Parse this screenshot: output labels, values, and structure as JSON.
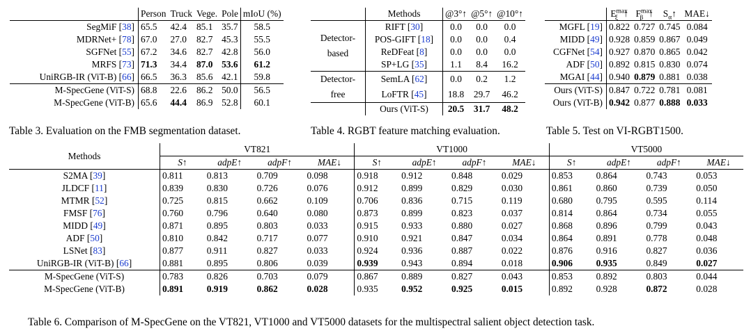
{
  "t3": {
    "cols": [
      "Person",
      "Truck",
      "Vege.",
      "Pole",
      "mIoU (%)"
    ],
    "rows": [
      {
        "m": "SegMiF",
        "r": "38",
        "v": [
          "65.5",
          "42.4",
          "85.1",
          "35.7",
          "58.5"
        ],
        "b": []
      },
      {
        "m": "MDRNet+",
        "r": "78",
        "v": [
          "67.0",
          "27.0",
          "82.7",
          "45.3",
          "55.5"
        ],
        "b": []
      },
      {
        "m": "SGFNet",
        "r": "55",
        "v": [
          "67.2",
          "34.6",
          "82.7",
          "42.8",
          "56.0"
        ],
        "b": []
      },
      {
        "m": "MRFS",
        "r": "73",
        "v": [
          "71.3",
          "34.4",
          "87.0",
          "53.6",
          "61.2"
        ],
        "b": [
          0,
          2,
          3,
          4
        ]
      },
      {
        "m": "UniRGB-IR (ViT-B)",
        "r": "66",
        "v": [
          "66.5",
          "36.3",
          "85.6",
          "42.1",
          "59.8"
        ],
        "b": []
      },
      {
        "m": "M-SpecGene (ViT-S)",
        "r": "",
        "v": [
          "68.8",
          "22.6",
          "86.2",
          "50.0",
          "56.5"
        ],
        "b": []
      },
      {
        "m": "M-SpecGene (ViT-B)",
        "r": "",
        "v": [
          "65.6",
          "44.4",
          "86.9",
          "52.8",
          "60.1"
        ],
        "b": [
          1
        ]
      }
    ],
    "caption": "Table 3. Evaluation on the FMB segmentation dataset."
  },
  "t4": {
    "cols": [
      "Methods",
      "@3°↑",
      "@5°↑",
      "@10°↑"
    ],
    "groups": [
      {
        "label1": "Detector-",
        "label2": "based",
        "rows": [
          {
            "m": "RIFT",
            "r": "30",
            "v": [
              "0.0",
              "0.0",
              "0.0"
            ],
            "b": []
          },
          {
            "m": "POS-GIFT",
            "r": "18",
            "v": [
              "0.0",
              "0.0",
              "0.4"
            ],
            "b": []
          },
          {
            "m": "ReDFeat",
            "r": "8",
            "v": [
              "0.0",
              "0.0",
              "0.0"
            ],
            "b": []
          },
          {
            "m": "SP+LG",
            "r": "35",
            "v": [
              "1.1",
              "8.4",
              "16.2"
            ],
            "b": []
          }
        ]
      },
      {
        "label1": "Detector-",
        "label2": "free",
        "rows": [
          {
            "m": "SemLA",
            "r": "62",
            "v": [
              "0.0",
              "0.2",
              "1.2"
            ],
            "b": []
          },
          {
            "m": "LoFTR",
            "r": "45",
            "v": [
              "18.8",
              "29.7",
              "46.2"
            ],
            "b": []
          }
        ]
      }
    ],
    "ours": {
      "m": "Ours (ViT-S)",
      "v": [
        "20.5",
        "31.7",
        "48.2"
      ]
    },
    "caption": "Table 4. RGBT feature matching evaluation."
  },
  "t5": {
    "cols": [
      "E",
      "max",
      "ξ",
      "↑",
      "F",
      "max",
      "β",
      "↑",
      "S",
      "α",
      "↑",
      "MAE↓"
    ],
    "rows": [
      {
        "m": "MGFL",
        "r": "19",
        "v": [
          "0.822",
          "0.727",
          "0.745",
          "0.084"
        ],
        "b": []
      },
      {
        "m": "MIDD",
        "r": "49",
        "v": [
          "0.928",
          "0.859",
          "0.867",
          "0.049"
        ],
        "b": []
      },
      {
        "m": "CGFNet",
        "r": "54",
        "v": [
          "0.927",
          "0.870",
          "0.865",
          "0.042"
        ],
        "b": []
      },
      {
        "m": "ADF",
        "r": "50",
        "v": [
          "0.892",
          "0.815",
          "0.830",
          "0.074"
        ],
        "b": []
      },
      {
        "m": "MGAI",
        "r": "44",
        "v": [
          "0.940",
          "0.879",
          "0.881",
          "0.038"
        ],
        "b": [
          1
        ]
      },
      {
        "m": "Ours (ViT-S)",
        "r": "",
        "v": [
          "0.847",
          "0.722",
          "0.781",
          "0.081"
        ],
        "b": []
      },
      {
        "m": "Ours (ViT-B)",
        "r": "",
        "v": [
          "0.942",
          "0.877",
          "0.888",
          "0.033"
        ],
        "b": [
          0,
          2,
          3
        ]
      }
    ],
    "caption": "Table 5. Test on VI-RGBT1500."
  },
  "t6": {
    "methods_header": "Methods",
    "datasets": [
      "VT821",
      "VT1000",
      "VT5000"
    ],
    "metrics": [
      "S↑",
      "adpE↑",
      "adpF↑",
      "MAE↓"
    ],
    "rows": [
      {
        "m": "S2MA",
        "r": "39",
        "v": [
          "0.811",
          "0.813",
          "0.709",
          "0.098",
          "0.918",
          "0.912",
          "0.848",
          "0.029",
          "0.853",
          "0.864",
          "0.743",
          "0.053"
        ],
        "b": []
      },
      {
        "m": "JLDCF",
        "r": "11",
        "v": [
          "0.839",
          "0.830",
          "0.726",
          "0.076",
          "0.912",
          "0.899",
          "0.829",
          "0.030",
          "0.861",
          "0.860",
          "0.739",
          "0.050"
        ],
        "b": []
      },
      {
        "m": "MTMR",
        "r": "52",
        "v": [
          "0.725",
          "0.815",
          "0.662",
          "0.109",
          "0.706",
          "0.836",
          "0.715",
          "0.119",
          "0.680",
          "0.795",
          "0.595",
          "0.114"
        ],
        "b": []
      },
      {
        "m": "FMSF",
        "r": "76",
        "v": [
          "0.760",
          "0.796",
          "0.640",
          "0.080",
          "0.873",
          "0.899",
          "0.823",
          "0.037",
          "0.814",
          "0.864",
          "0.734",
          "0.055"
        ],
        "b": []
      },
      {
        "m": "MIDD",
        "r": "49",
        "v": [
          "0.871",
          "0.895",
          "0.803",
          "0.033",
          "0.915",
          "0.933",
          "0.880",
          "0.027",
          "0.868",
          "0.896",
          "0.799",
          "0.043"
        ],
        "b": []
      },
      {
        "m": "ADF",
        "r": "50",
        "v": [
          "0.810",
          "0.842",
          "0.717",
          "0.077",
          "0.910",
          "0.921",
          "0.847",
          "0.034",
          "0.864",
          "0.891",
          "0.778",
          "0.048"
        ],
        "b": []
      },
      {
        "m": "LSNet",
        "r": "83",
        "v": [
          "0.877",
          "0.911",
          "0.827",
          "0.033",
          "0.924",
          "0.936",
          "0.887",
          "0.022",
          "0.876",
          "0.916",
          "0.827",
          "0.036"
        ],
        "b": []
      },
      {
        "m": "UniRGB-IR (ViT-B)",
        "r": "66",
        "v": [
          "0.881",
          "0.895",
          "0.806",
          "0.039",
          "0.939",
          "0.943",
          "0.894",
          "0.018",
          "0.906",
          "0.935",
          "0.849",
          "0.027"
        ],
        "b": [
          4,
          8,
          9,
          11
        ]
      },
      {
        "m": "M-SpecGene (ViT-S)",
        "r": "",
        "v": [
          "0.783",
          "0.826",
          "0.703",
          "0.079",
          "0.867",
          "0.889",
          "0.827",
          "0.043",
          "0.853",
          "0.892",
          "0.803",
          "0.044"
        ],
        "b": []
      },
      {
        "m": "M-SpecGene (ViT-B)",
        "r": "",
        "v": [
          "0.891",
          "0.919",
          "0.862",
          "0.028",
          "0.935",
          "0.952",
          "0.925",
          "0.015",
          "0.892",
          "0.928",
          "0.872",
          "0.028"
        ],
        "b": [
          0,
          1,
          2,
          3,
          5,
          6,
          7,
          10
        ]
      }
    ],
    "caption": "Table 6. Comparison of M-SpecGene on the VT821, VT1000 and VT5000 datasets for the multispectral salient object detection task."
  }
}
